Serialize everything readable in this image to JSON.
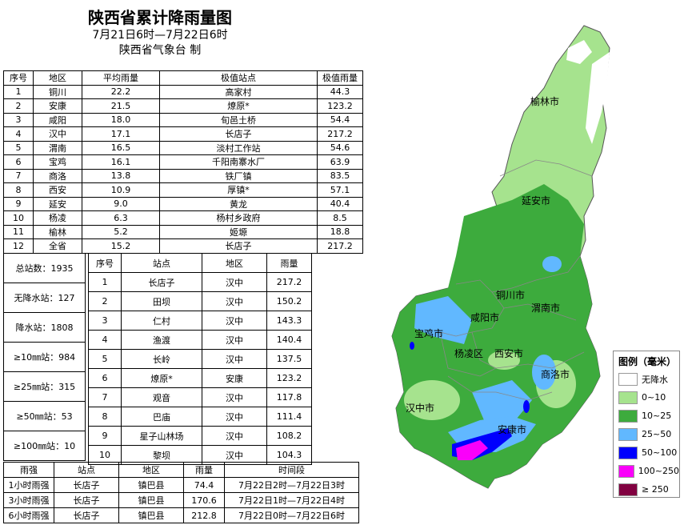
{
  "title": {
    "line1": "陕西省累计降雨量图",
    "line2": "7月21日6时—7月22日6时",
    "line3": "陕西省气象台 制"
  },
  "rank_table": {
    "headers": [
      "序号",
      "地区",
      "平均雨量",
      "极值站点",
      "极值雨量"
    ],
    "rows": [
      [
        "1",
        "铜川",
        "22.2",
        "高家村",
        "44.3"
      ],
      [
        "2",
        "安康",
        "21.5",
        "燎原*",
        "123.2"
      ],
      [
        "3",
        "咸阳",
        "18.0",
        "旬邑土桥",
        "54.4"
      ],
      [
        "4",
        "汉中",
        "17.1",
        "长店子",
        "217.2"
      ],
      [
        "5",
        "渭南",
        "16.5",
        "淡村工作站",
        "54.6"
      ],
      [
        "6",
        "宝鸡",
        "16.1",
        "千阳南寨水厂",
        "63.9"
      ],
      [
        "7",
        "商洛",
        "13.8",
        "铁厂镇",
        "83.5"
      ],
      [
        "8",
        "西安",
        "10.9",
        "厚镇*",
        "57.1"
      ],
      [
        "9",
        "延安",
        "9.0",
        "黄龙",
        "40.4"
      ],
      [
        "10",
        "杨凌",
        "6.3",
        "杨村乡政府",
        "8.5"
      ],
      [
        "11",
        "榆林",
        "5.2",
        "姬塬",
        "18.8"
      ],
      [
        "12",
        "全省",
        "15.2",
        "长店子",
        "217.2"
      ]
    ]
  },
  "summary": [
    "总站数：1935",
    "无降水站：127",
    "降水站：1808",
    "≥10㎜站：984",
    "≥25㎜站：315",
    "≥50㎜站：53",
    "≥100㎜站：10"
  ],
  "top10_table": {
    "headers": [
      "序号",
      "站点",
      "地区",
      "雨量"
    ],
    "rows": [
      [
        "1",
        "长店子",
        "汉中",
        "217.2"
      ],
      [
        "2",
        "田坝",
        "汉中",
        "150.2"
      ],
      [
        "3",
        "仁村",
        "汉中",
        "143.3"
      ],
      [
        "4",
        "渔渡",
        "汉中",
        "140.4"
      ],
      [
        "5",
        "长岭",
        "汉中",
        "137.5"
      ],
      [
        "6",
        "燎原*",
        "安康",
        "123.2"
      ],
      [
        "7",
        "观音",
        "汉中",
        "117.8"
      ],
      [
        "8",
        "巴庙",
        "汉中",
        "111.4"
      ],
      [
        "9",
        "星子山林场",
        "汉中",
        "108.2"
      ],
      [
        "10",
        "黎坝",
        "汉中",
        "104.3"
      ]
    ]
  },
  "intensity_table": {
    "headers": [
      "雨强",
      "站点",
      "地区",
      "雨量",
      "时间段"
    ],
    "rows": [
      [
        "1小时雨强",
        "长店子",
        "镇巴县",
        "74.4",
        "7月22日2时—7月22日3时"
      ],
      [
        "3小时雨强",
        "长店子",
        "镇巴县",
        "170.6",
        "7月22日1时—7月22日4时"
      ],
      [
        "6小时雨强",
        "长店子",
        "镇巴县",
        "212.8",
        "7月22日0时—7月22日6时"
      ]
    ]
  },
  "map": {
    "cities": [
      "榆林市",
      "延安市",
      "铜川市",
      "渭南市",
      "咸阳市",
      "宝鸡市",
      "杨凌区",
      "西安市",
      "商洛市",
      "汉中市",
      "安康市"
    ]
  },
  "legend": {
    "title": "图例（毫米）",
    "items": [
      {
        "label": "无降水",
        "color": "#ffffff"
      },
      {
        "label": "0~10",
        "color": "#a6e38e"
      },
      {
        "label": "10~25",
        "color": "#3dab3d"
      },
      {
        "label": "25~50",
        "color": "#61b8ff"
      },
      {
        "label": "50~100",
        "color": "#0000fe"
      },
      {
        "label": "100~250",
        "color": "#fa00fa"
      },
      {
        "label": "≥ 250",
        "color": "#810040"
      }
    ]
  }
}
